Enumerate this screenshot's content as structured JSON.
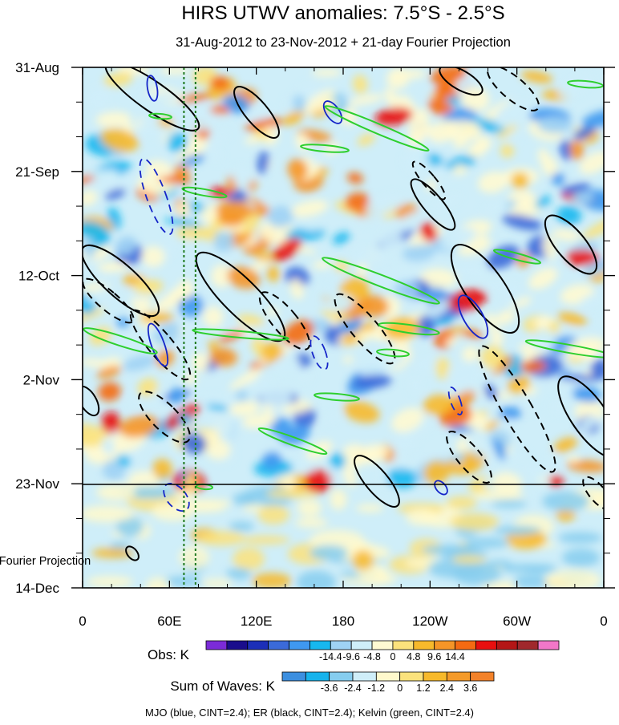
{
  "chart_data": {
    "type": "heatmap",
    "title": "HIRS UTWV anomalies: 7.5°S - 2.5°S",
    "subtitle": "31-Aug-2012 to 23-Nov-2012 + 21-day Fourier Projection",
    "x_ticks": [
      "0",
      "60E",
      "120E",
      "180",
      "120W",
      "60W",
      "0"
    ],
    "x_tick_values": [
      0,
      60,
      120,
      180,
      240,
      300,
      360
    ],
    "xlim": [
      0,
      360
    ],
    "y_ticks": [
      "31-Aug",
      "21-Sep",
      "12-Oct",
      "2-Nov",
      "23-Nov",
      "14-Dec"
    ],
    "y_tick_days": [
      0,
      21,
      42,
      63,
      84,
      105
    ],
    "ylim_days": [
      0,
      105
    ],
    "observation_end": "23-Nov",
    "projection_label": "Fourier Projection",
    "projection_days": 21,
    "reference_longitudes": [
      70,
      78
    ],
    "obs_colorbar": {
      "label": "Obs: K",
      "tick_labels": [
        "-14.4",
        "-9.6",
        "-4.8",
        "0",
        "4.8",
        "9.6",
        "14.4"
      ],
      "colors": [
        "#7b2bd8",
        "#1a0d8c",
        "#1c2fb8",
        "#3b6ad9",
        "#3f98f0",
        "#17b8ef",
        "#9fd2f4",
        "#cfeef9",
        "#fffad2",
        "#fbe27c",
        "#f7b92b",
        "#f59527",
        "#f46a12",
        "#e80f0f",
        "#b41616",
        "#a0282c",
        "#f277c8"
      ]
    },
    "waves_colorbar": {
      "label": "Sum of Waves: K",
      "tick_labels": [
        "-3.6",
        "-2.4",
        "-1.2",
        "0",
        "1.2",
        "2.4",
        "3.6"
      ],
      "colors": [
        "#3c8fe0",
        "#17b3ec",
        "#86cdef",
        "#cfeef9",
        "#fff9cc",
        "#fbe27c",
        "#f7b92b",
        "#f49a2a",
        "#f3822a"
      ]
    },
    "series": [
      {
        "name": "MJO",
        "color": "blue",
        "cint": 2.4
      },
      {
        "name": "ER",
        "color": "black",
        "cint": 2.4
      },
      {
        "name": "Kelvin",
        "color": "green",
        "cint": 2.4
      }
    ],
    "footer": "MJO (blue, CINT=2.4); ER (black, CINT=2.4); Kelvin (green, CINT=2.4)"
  }
}
